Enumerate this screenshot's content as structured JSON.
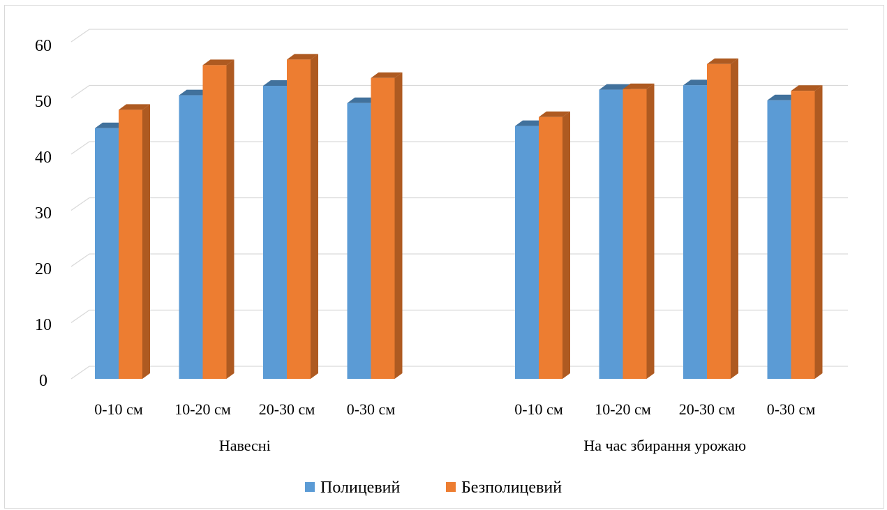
{
  "chart_data": {
    "type": "bar",
    "style": "3d-clustered-column",
    "groups": [
      {
        "label": "Навесні",
        "categories": [
          "0-10 см",
          "10-20 см",
          "20-30 см",
          "0-30 см"
        ]
      },
      {
        "label": "На час збирання урожаю",
        "categories": [
          "0-10 см",
          "10-20 см",
          "20-30 см",
          "0-30 см"
        ]
      }
    ],
    "series": [
      {
        "name": "Полицевий",
        "color": "#5b9bd5",
        "side_color": "#41719c",
        "values": [
          44.9,
          50.8,
          52.5,
          49.4,
          45.3,
          51.8,
          52.6,
          49.9
        ]
      },
      {
        "name": "Безполицевий",
        "color": "#ed7d31",
        "side_color": "#ae5a21",
        "values": [
          48.2,
          56.2,
          57.2,
          53.9,
          46.9,
          51.9,
          56.4,
          51.6
        ]
      }
    ],
    "yticks": [
      "0",
      "10",
      "20",
      "30",
      "40",
      "50",
      "60"
    ],
    "ylim": [
      0,
      60
    ],
    "grid": true,
    "legend_position": "bottom"
  }
}
